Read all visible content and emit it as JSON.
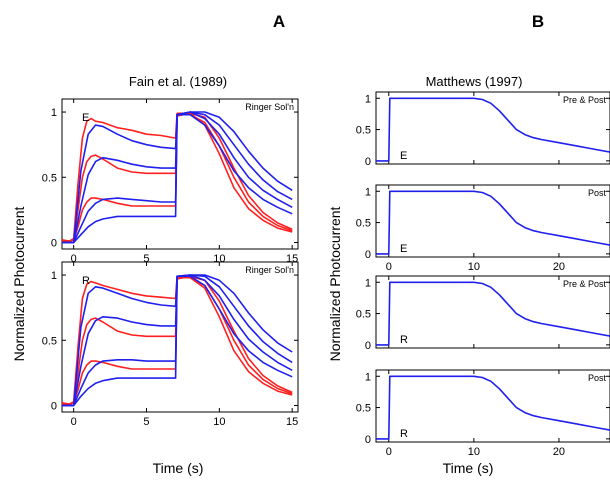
{
  "panel_letters": {
    "a": "A",
    "b": "B"
  },
  "titles": {
    "a": "Fain et al. (1989)",
    "b": "Matthews (1997)"
  },
  "axis_labels": {
    "a_ylabel": "Normalized Photocurrent",
    "a_xlabel": "Time (s)",
    "b_ylabel": "Normalized Photocurrent",
    "b_xlabel": "Time (s)"
  },
  "colors": {
    "experiment": "#ff2020",
    "model": "#2020ee",
    "axes": "#000000"
  },
  "chart_data": [
    {
      "id": "A-top",
      "type": "line",
      "xlim": [
        -0.8,
        15.4
      ],
      "ylim": [
        -0.05,
        1.1
      ],
      "xticks": [
        0,
        5,
        10,
        15
      ],
      "yticks": [
        0,
        0.5,
        1
      ],
      "xtick_labels": [
        "0",
        "5",
        "10",
        "15"
      ],
      "ytick_labels": [
        "0",
        "0.5",
        "1"
      ],
      "corner_label": "Ringer Sol'n",
      "inset_label": "E",
      "series": [
        {
          "color": "red",
          "x": [
            -0.8,
            -0.3,
            0,
            0.3,
            0.6,
            0.9,
            1.2,
            1.5,
            2,
            3,
            4,
            5,
            6,
            7,
            7.1,
            8,
            9,
            10,
            11,
            12,
            13,
            14,
            15
          ],
          "y": [
            0.02,
            0.01,
            0.03,
            0.45,
            0.8,
            0.93,
            0.95,
            0.93,
            0.92,
            0.88,
            0.86,
            0.83,
            0.82,
            0.8,
            0.99,
            0.99,
            0.9,
            0.68,
            0.42,
            0.26,
            0.17,
            0.11,
            0.08
          ]
        },
        {
          "color": "red",
          "x": [
            -0.8,
            -0.3,
            0,
            0.3,
            0.6,
            0.9,
            1.2,
            1.5,
            2,
            3,
            4,
            5,
            6,
            7,
            7.1,
            8,
            9,
            10,
            11,
            12,
            13,
            14,
            15
          ],
          "y": [
            0.02,
            0.01,
            0.02,
            0.25,
            0.5,
            0.62,
            0.66,
            0.67,
            0.64,
            0.57,
            0.54,
            0.53,
            0.53,
            0.53,
            0.98,
            0.98,
            0.92,
            0.74,
            0.5,
            0.31,
            0.2,
            0.13,
            0.09
          ]
        },
        {
          "color": "red",
          "x": [
            -0.8,
            -0.3,
            0,
            0.3,
            0.6,
            0.9,
            1.2,
            1.5,
            2,
            3,
            4,
            5,
            6,
            7,
            7.1,
            8,
            9,
            10,
            11,
            12,
            13,
            14,
            15
          ],
          "y": [
            0.01,
            0.01,
            0.02,
            0.12,
            0.25,
            0.31,
            0.34,
            0.34,
            0.33,
            0.3,
            0.28,
            0.28,
            0.28,
            0.28,
            0.97,
            0.99,
            0.96,
            0.8,
            0.57,
            0.36,
            0.23,
            0.15,
            0.1
          ]
        },
        {
          "color": "blue",
          "x": [
            -0.8,
            -0.3,
            0,
            0.5,
            1,
            1.5,
            2,
            3,
            4,
            5,
            6,
            7,
            7.1,
            8,
            9,
            10,
            11,
            12,
            13,
            14,
            15
          ],
          "y": [
            0,
            0,
            0,
            0.55,
            0.83,
            0.9,
            0.89,
            0.83,
            0.78,
            0.75,
            0.73,
            0.72,
            0.98,
            0.98,
            0.9,
            0.74,
            0.55,
            0.42,
            0.33,
            0.27,
            0.22
          ]
        },
        {
          "color": "blue",
          "x": [
            -0.8,
            -0.3,
            0,
            0.5,
            1,
            1.5,
            2,
            3,
            4,
            5,
            6,
            7,
            7.1,
            8,
            9,
            10,
            11,
            12,
            13,
            14,
            15
          ],
          "y": [
            0,
            0,
            0,
            0.28,
            0.52,
            0.62,
            0.65,
            0.63,
            0.6,
            0.58,
            0.57,
            0.57,
            0.98,
            1.0,
            0.95,
            0.83,
            0.65,
            0.5,
            0.4,
            0.33,
            0.27
          ]
        },
        {
          "color": "blue",
          "x": [
            -0.8,
            -0.3,
            0,
            0.5,
            1,
            1.5,
            2,
            3,
            4,
            5,
            6,
            7,
            7.1,
            8,
            9,
            10,
            11,
            12,
            13,
            14,
            15
          ],
          "y": [
            0,
            0,
            0,
            0.12,
            0.24,
            0.3,
            0.33,
            0.34,
            0.33,
            0.32,
            0.31,
            0.31,
            0.98,
            1.0,
            0.98,
            0.9,
            0.75,
            0.6,
            0.48,
            0.39,
            0.33
          ]
        },
        {
          "color": "blue",
          "x": [
            -0.8,
            -0.3,
            0,
            0.5,
            1,
            1.5,
            2,
            3,
            4,
            5,
            6,
            7,
            7.1,
            8,
            9,
            10,
            11,
            12,
            13,
            14,
            15
          ],
          "y": [
            0,
            0,
            0,
            0.06,
            0.12,
            0.16,
            0.18,
            0.2,
            0.2,
            0.2,
            0.2,
            0.2,
            0.98,
            1.0,
            1.0,
            0.96,
            0.85,
            0.7,
            0.57,
            0.47,
            0.4
          ]
        }
      ]
    },
    {
      "id": "A-bottom",
      "type": "line",
      "xlim": [
        -0.8,
        15.4
      ],
      "ylim": [
        -0.05,
        1.1
      ],
      "xticks": [
        0,
        5,
        10,
        15
      ],
      "yticks": [
        0,
        0.5,
        1
      ],
      "xtick_labels": [
        "0",
        "5",
        "10",
        "15"
      ],
      "ytick_labels": [
        "0",
        "0.5",
        "1"
      ],
      "corner_label": "Ringer Sol'n",
      "inset_label": "R",
      "series": [
        {
          "color": "red",
          "x": [
            -0.8,
            -0.3,
            0,
            0.3,
            0.6,
            0.9,
            1.2,
            1.5,
            2,
            3,
            4,
            5,
            6,
            7,
            7.1,
            8,
            9,
            10,
            11,
            12,
            13,
            14,
            15
          ],
          "y": [
            0.02,
            0.01,
            0.03,
            0.45,
            0.82,
            0.93,
            0.95,
            0.94,
            0.92,
            0.89,
            0.86,
            0.84,
            0.83,
            0.82,
            0.99,
            0.98,
            0.9,
            0.68,
            0.42,
            0.26,
            0.17,
            0.11,
            0.08
          ]
        },
        {
          "color": "red",
          "x": [
            -0.8,
            -0.3,
            0,
            0.3,
            0.6,
            0.9,
            1.2,
            1.5,
            2,
            3,
            4,
            5,
            6,
            7,
            7.1,
            8,
            9,
            10,
            11,
            12,
            13,
            14,
            15
          ],
          "y": [
            0.02,
            0.01,
            0.02,
            0.25,
            0.5,
            0.62,
            0.66,
            0.67,
            0.64,
            0.57,
            0.54,
            0.53,
            0.53,
            0.53,
            0.98,
            0.98,
            0.92,
            0.74,
            0.5,
            0.31,
            0.2,
            0.13,
            0.09
          ]
        },
        {
          "color": "red",
          "x": [
            -0.8,
            -0.3,
            0,
            0.3,
            0.6,
            0.9,
            1.2,
            1.5,
            2,
            3,
            4,
            5,
            6,
            7,
            7.1,
            8,
            9,
            10,
            11,
            12,
            13,
            14,
            15
          ],
          "y": [
            0.01,
            0.01,
            0.02,
            0.12,
            0.25,
            0.31,
            0.34,
            0.34,
            0.33,
            0.3,
            0.28,
            0.28,
            0.28,
            0.28,
            0.97,
            0.99,
            0.96,
            0.8,
            0.57,
            0.36,
            0.23,
            0.15,
            0.1
          ]
        },
        {
          "color": "blue",
          "x": [
            -0.8,
            -0.3,
            0,
            0.5,
            1,
            1.5,
            2,
            3,
            4,
            5,
            6,
            7,
            7.1,
            8,
            9,
            10,
            11,
            12,
            13,
            14,
            15
          ],
          "y": [
            0,
            0,
            0,
            0.6,
            0.86,
            0.91,
            0.9,
            0.86,
            0.82,
            0.79,
            0.77,
            0.76,
            0.99,
            0.99,
            0.92,
            0.74,
            0.55,
            0.42,
            0.33,
            0.27,
            0.22
          ]
        },
        {
          "color": "blue",
          "x": [
            -0.8,
            -0.3,
            0,
            0.5,
            1,
            1.5,
            2,
            3,
            4,
            5,
            6,
            7,
            7.1,
            8,
            9,
            10,
            11,
            12,
            13,
            14,
            15
          ],
          "y": [
            0,
            0,
            0,
            0.3,
            0.55,
            0.65,
            0.68,
            0.67,
            0.64,
            0.62,
            0.61,
            0.61,
            0.99,
            1.0,
            0.96,
            0.84,
            0.66,
            0.51,
            0.41,
            0.33,
            0.27
          ]
        },
        {
          "color": "blue",
          "x": [
            -0.8,
            -0.3,
            0,
            0.5,
            1,
            1.5,
            2,
            3,
            4,
            5,
            6,
            7,
            7.1,
            8,
            9,
            10,
            11,
            12,
            13,
            14,
            15
          ],
          "y": [
            0,
            0,
            0,
            0.13,
            0.25,
            0.31,
            0.34,
            0.35,
            0.35,
            0.34,
            0.34,
            0.34,
            0.99,
            1.0,
            0.99,
            0.91,
            0.76,
            0.61,
            0.49,
            0.4,
            0.33
          ]
        },
        {
          "color": "blue",
          "x": [
            -0.8,
            -0.3,
            0,
            0.5,
            1,
            1.5,
            2,
            3,
            4,
            5,
            6,
            7,
            7.1,
            8,
            9,
            10,
            11,
            12,
            13,
            14,
            15
          ],
          "y": [
            0,
            0,
            0,
            0.07,
            0.13,
            0.17,
            0.19,
            0.21,
            0.21,
            0.21,
            0.21,
            0.21,
            0.99,
            1.0,
            1.0,
            0.96,
            0.86,
            0.71,
            0.58,
            0.48,
            0.41
          ]
        }
      ]
    },
    {
      "id": "B-1",
      "type": "line",
      "xlim": [
        -1.5,
        26
      ],
      "ylim": [
        -0.05,
        1.1
      ],
      "xticks": [
        0,
        10,
        20
      ],
      "yticks": [
        0,
        0.5,
        1
      ],
      "xtick_labels": [],
      "ytick_labels": [
        "0",
        "0.5",
        "1"
      ],
      "corner_label": "Pre & Post",
      "inset_label": "E",
      "series": [
        {
          "color": "blue",
          "x": [
            -1.5,
            0,
            0.12,
            0.5,
            10,
            11,
            12,
            13,
            14,
            15,
            16,
            17,
            18,
            20,
            22,
            24,
            26
          ],
          "y": [
            0,
            0,
            1,
            1,
            1,
            0.98,
            0.92,
            0.8,
            0.65,
            0.5,
            0.42,
            0.37,
            0.34,
            0.29,
            0.24,
            0.19,
            0.14
          ]
        }
      ]
    },
    {
      "id": "B-2",
      "type": "line",
      "xlim": [
        -1.5,
        26
      ],
      "ylim": [
        -0.05,
        1.1
      ],
      "xticks": [
        0,
        10,
        20
      ],
      "yticks": [
        0,
        0.5,
        1
      ],
      "xtick_labels": [
        "0",
        "10",
        "20"
      ],
      "ytick_labels": [
        "0",
        "0.5",
        "1"
      ],
      "corner_label": "Post",
      "inset_label": "E",
      "series": [
        {
          "color": "blue",
          "x": [
            -1.5,
            0,
            0.12,
            0.5,
            10,
            11,
            12,
            13,
            14,
            15,
            16,
            17,
            18,
            20,
            22,
            24,
            26
          ],
          "y": [
            0,
            0,
            1,
            1,
            1,
            0.98,
            0.92,
            0.8,
            0.65,
            0.5,
            0.42,
            0.37,
            0.34,
            0.29,
            0.24,
            0.19,
            0.14
          ]
        }
      ]
    },
    {
      "id": "B-3",
      "type": "line",
      "xlim": [
        -1.5,
        26
      ],
      "ylim": [
        -0.05,
        1.1
      ],
      "xticks": [
        0,
        10,
        20
      ],
      "yticks": [
        0,
        0.5,
        1
      ],
      "xtick_labels": [],
      "ytick_labels": [
        "0",
        "0.5",
        "1"
      ],
      "corner_label": "Pre & Post",
      "inset_label": "R",
      "series": [
        {
          "color": "blue",
          "x": [
            -1.5,
            0,
            0.12,
            0.5,
            10,
            11,
            12,
            13,
            14,
            15,
            16,
            17,
            18,
            20,
            22,
            24,
            26
          ],
          "y": [
            0,
            0,
            1,
            1,
            1,
            0.98,
            0.92,
            0.8,
            0.65,
            0.5,
            0.42,
            0.37,
            0.34,
            0.29,
            0.24,
            0.19,
            0.14
          ]
        }
      ]
    },
    {
      "id": "B-4",
      "type": "line",
      "xlim": [
        -1.5,
        26
      ],
      "ylim": [
        -0.05,
        1.1
      ],
      "xticks": [
        0,
        10,
        20
      ],
      "yticks": [
        0,
        0.5,
        1
      ],
      "xtick_labels": [
        "0",
        "10",
        "20"
      ],
      "ytick_labels": [
        "0",
        "0.5",
        "1"
      ],
      "corner_label": "Post",
      "inset_label": "R",
      "series": [
        {
          "color": "blue",
          "x": [
            -1.5,
            0,
            0.12,
            0.5,
            10,
            11,
            12,
            13,
            14,
            15,
            16,
            17,
            18,
            20,
            22,
            24,
            26
          ],
          "y": [
            0,
            0,
            1,
            1,
            1,
            0.98,
            0.92,
            0.8,
            0.65,
            0.5,
            0.42,
            0.37,
            0.34,
            0.29,
            0.24,
            0.19,
            0.14
          ]
        }
      ]
    }
  ]
}
